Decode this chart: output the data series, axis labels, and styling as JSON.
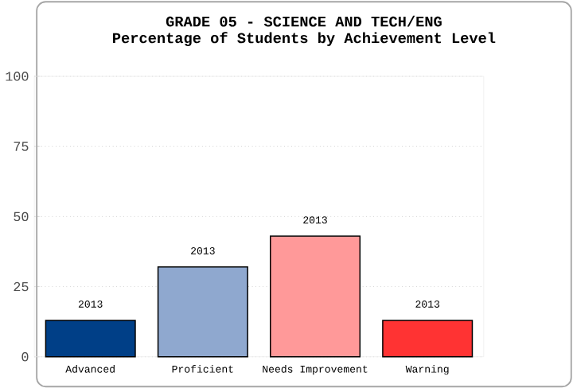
{
  "chart_data": {
    "type": "bar",
    "title": "GRADE 05 - SCIENCE AND TECH/ENG",
    "subtitle": "Percentage of Students by Achievement Level",
    "categories": [
      "Advanced",
      "Proficient",
      "Needs Improvement",
      "Warning"
    ],
    "values": [
      13,
      32,
      43,
      13
    ],
    "colors": [
      "#003f87",
      "#8fa8cf",
      "#ff9999",
      "#ff3333"
    ],
    "ylim": [
      0,
      100
    ],
    "yticks": [
      0,
      25,
      50,
      75,
      100
    ],
    "grid": "y",
    "annotations": [
      {
        "text": "2013",
        "x": "Advanced",
        "y": 13
      },
      {
        "text": "2013",
        "x": "Proficient",
        "y": 32
      },
      {
        "text": "2013",
        "x": "Needs Improvement",
        "y": 43
      },
      {
        "text": "2013",
        "x": "Warning",
        "y": 13
      }
    ]
  }
}
